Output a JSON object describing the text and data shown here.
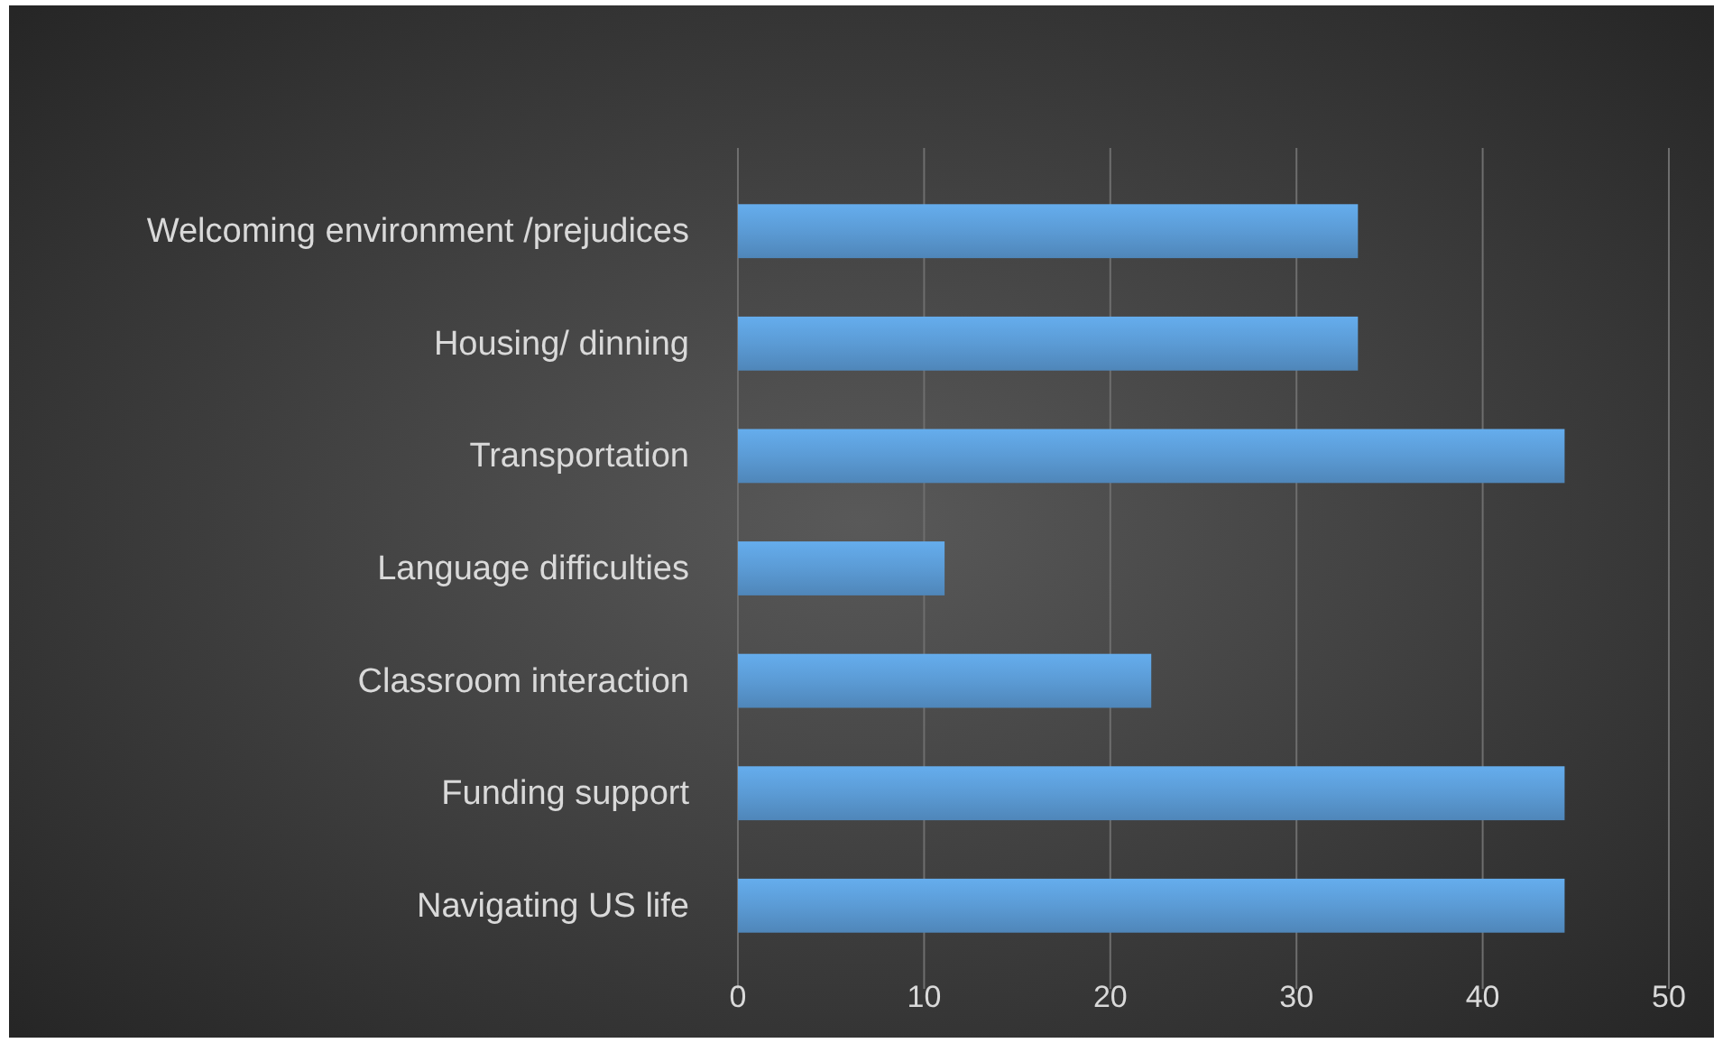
{
  "chart_data": {
    "type": "bar",
    "orientation": "horizontal",
    "categories": [
      "Welcoming environment /prejudices",
      "Housing/ dinning",
      "Transportation",
      "Language difficulties",
      "Classroom interaction",
      "Funding support",
      "Navigating US life"
    ],
    "values": [
      33.3,
      33.3,
      44.4,
      11.1,
      22.2,
      44.4,
      44.4
    ],
    "color": "#5b9bd5",
    "xlim": [
      0,
      50
    ],
    "xticks": [
      0,
      10,
      20,
      30,
      40,
      50
    ],
    "grid": "x"
  }
}
